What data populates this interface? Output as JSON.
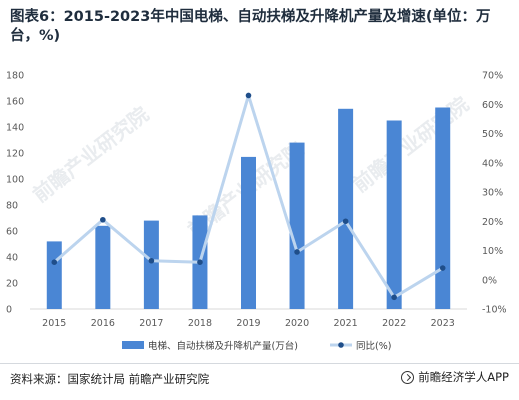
{
  "title": "图表6：2015-2023年中国电梯、自动扶梯及升降机产量及增速(单位：万台，%)",
  "source": "资料来源：国家统计局 前瞻产业研究院",
  "brand": "前瞻经济学人APP",
  "watermark": "前瞻产业研究院",
  "colors": {
    "bar": "#4a86d4",
    "line": "#bcd4ee",
    "marker": "#1f4e8a",
    "grid": "#d9d9d9"
  },
  "chart_data": {
    "type": "bar",
    "categories": [
      "2015",
      "2016",
      "2017",
      "2018",
      "2019",
      "2020",
      "2021",
      "2022",
      "2023"
    ],
    "series": [
      {
        "name": "电梯、自动扶梯及升降机产量(万台)",
        "type": "bar",
        "axis": "left",
        "values": [
          52,
          64,
          68,
          72,
          117,
          128,
          154,
          145,
          155
        ]
      },
      {
        "name": "同比(%)",
        "type": "line",
        "axis": "right",
        "values": [
          6.0,
          20.5,
          6.5,
          6.0,
          63.0,
          9.5,
          20.0,
          -6.0,
          4.0
        ]
      }
    ],
    "left_axis": {
      "ylim": [
        0,
        180
      ],
      "ticks": [
        "0",
        "20",
        "40",
        "60",
        "80",
        "100",
        "120",
        "140",
        "160",
        "180"
      ]
    },
    "right_axis": {
      "ylim": [
        -10,
        70
      ],
      "ticks": [
        "-10%",
        "0%",
        "10%",
        "20%",
        "30%",
        "40%",
        "50%",
        "60%",
        "70%"
      ]
    },
    "grid": false,
    "legend_position": "bottom"
  }
}
